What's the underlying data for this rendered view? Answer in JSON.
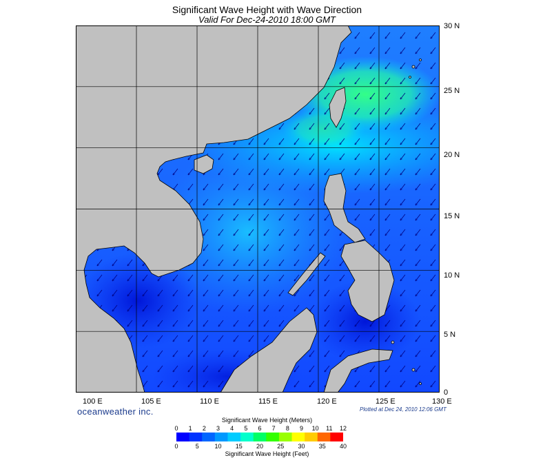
{
  "header": {
    "title": "Significant Wave Height with Wave Direction",
    "subtitle": "Valid For Dec-24-2010 18:00 GMT"
  },
  "map": {
    "lon_labels": [
      "100 E",
      "105 E",
      "110 E",
      "115 E",
      "120 E",
      "125 E",
      "130 E"
    ],
    "lat_labels": [
      "30 N",
      "25 N",
      "20 N",
      "15 N",
      "10 N",
      "5 N",
      "0"
    ],
    "lon_range": [
      100,
      130
    ],
    "lat_range": [
      0,
      30
    ],
    "land_color": "#c0c0c0",
    "wave_direction": "northeast-to-southwest"
  },
  "footer": {
    "brand": "oceanweather inc.",
    "plotted": "Plotted at Dec 24, 2010 12:06 GMT"
  },
  "colorbar": {
    "title_meters": "Significant Wave Height (Meters)",
    "title_feet": "Significant Wave Height (Feet)",
    "meters_ticks": [
      "0",
      "1",
      "2",
      "3",
      "4",
      "5",
      "6",
      "7",
      "8",
      "9",
      "10",
      "11",
      "12"
    ],
    "feet_ticks": [
      "0",
      "5",
      "10",
      "15",
      "20",
      "25",
      "30",
      "35",
      "40"
    ],
    "colors": [
      "#0000ff",
      "#0033ff",
      "#0066ff",
      "#0099ff",
      "#00ccff",
      "#00ffcc",
      "#00ff66",
      "#33ff00",
      "#99ff00",
      "#ffff00",
      "#ffcc00",
      "#ff6600",
      "#ff0000"
    ]
  }
}
